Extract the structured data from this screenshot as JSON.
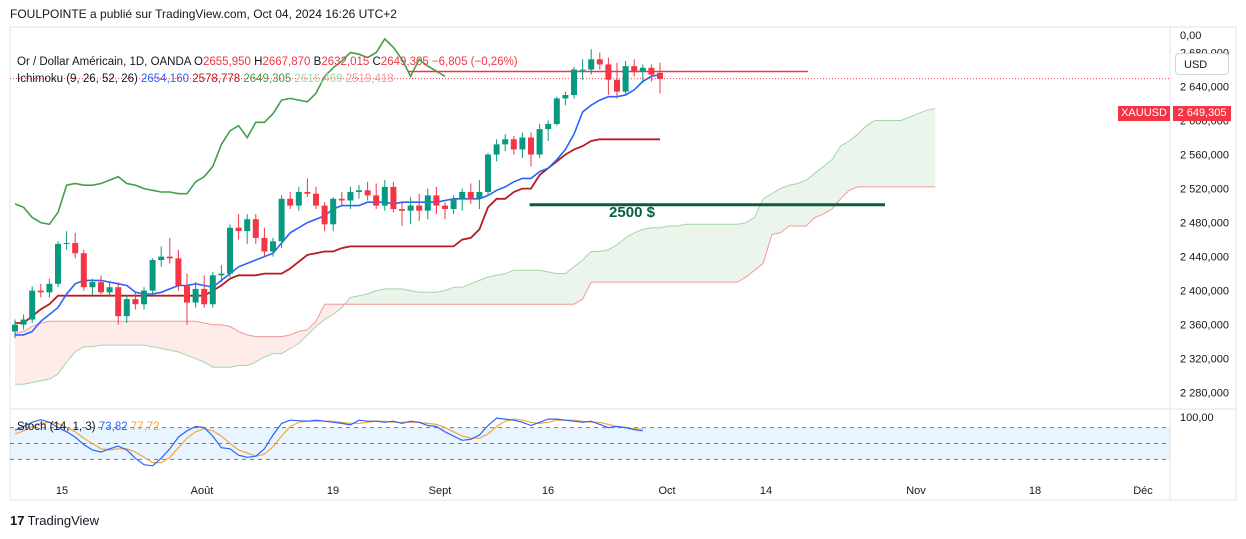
{
  "header": {
    "text": "FOULPOINTE a publié sur TradingView.com, Oct 04, 2024 16:26 UTC+2"
  },
  "legend": {
    "symbol": "Or / Dollar Américain, 1D, OANDA",
    "open_label": "O",
    "open": "2655,950",
    "high_label": "H",
    "high": "2667,870",
    "low_label": "B",
    "low": "2632,015",
    "close_label": "C",
    "close": "2649,305",
    "change": "−6,805 (−0,26%)",
    "ichimoku_label": "Ichimoku (9, 26, 52, 26)",
    "ich_conversion": "2654,160",
    "ich_base": "2578,778",
    "ich_lagging": "2649,305",
    "ich_span_a": "2616,469",
    "ich_span_b": "2519,418"
  },
  "stoch_legend": {
    "label": "Stoch (14, 1, 3)",
    "k": "73,82",
    "d": "77,72"
  },
  "price_axis": {
    "currency": "USD",
    "top_label": "0,00",
    "price_ticks": [
      "2 680,000",
      "2 640,000",
      "2 600,000",
      "2 560,000",
      "2 520,000",
      "2 480,000",
      "2 440,000",
      "2 400,000",
      "2 360,000",
      "2 320,000",
      "2 280,000"
    ],
    "stoch_top_tick": "100,00",
    "symbol_tag": "XAUUSD",
    "price_tag": "2 649,305"
  },
  "time_axis": {
    "labels": [
      "15",
      "Août",
      "19",
      "Sept",
      "16",
      "Oct",
      "14",
      "Nov",
      "18",
      "Déc"
    ]
  },
  "annotation": {
    "text": "2500 $"
  },
  "colors": {
    "up": "#089981",
    "down": "#f23645",
    "conversion": "#2962ff",
    "base": "#b71c1c",
    "lagging": "#43a047",
    "span_a": "#a5d6a7",
    "span_b": "#ef9a9a",
    "stoch_k": "#2962ff",
    "stoch_d": "#f2a93b",
    "level_line": "#0b5e3c",
    "resistance_line": "#f23645"
  },
  "footer": {
    "brand": "TradingView",
    "logo": "tradingview-logo-icon"
  },
  "chart_data": {
    "type": "candlestick",
    "symbol": "XAUUSD",
    "timeframe": "1D",
    "ylim": [
      2262,
      2710
    ],
    "candles": [
      {
        "o": 2352,
        "h": 2366,
        "l": 2344,
        "c": 2360
      },
      {
        "o": 2360,
        "h": 2372,
        "l": 2354,
        "c": 2366
      },
      {
        "o": 2366,
        "h": 2405,
        "l": 2362,
        "c": 2400
      },
      {
        "o": 2400,
        "h": 2408,
        "l": 2392,
        "c": 2398
      },
      {
        "o": 2398,
        "h": 2414,
        "l": 2392,
        "c": 2408
      },
      {
        "o": 2408,
        "h": 2458,
        "l": 2404,
        "c": 2455
      },
      {
        "o": 2455,
        "h": 2470,
        "l": 2448,
        "c": 2456
      },
      {
        "o": 2456,
        "h": 2468,
        "l": 2438,
        "c": 2444
      },
      {
        "o": 2444,
        "h": 2448,
        "l": 2400,
        "c": 2404
      },
      {
        "o": 2404,
        "h": 2414,
        "l": 2395,
        "c": 2410
      },
      {
        "o": 2410,
        "h": 2418,
        "l": 2396,
        "c": 2398
      },
      {
        "o": 2398,
        "h": 2410,
        "l": 2394,
        "c": 2404
      },
      {
        "o": 2404,
        "h": 2410,
        "l": 2360,
        "c": 2370
      },
      {
        "o": 2370,
        "h": 2395,
        "l": 2362,
        "c": 2390
      },
      {
        "o": 2390,
        "h": 2398,
        "l": 2378,
        "c": 2384
      },
      {
        "o": 2384,
        "h": 2404,
        "l": 2378,
        "c": 2400
      },
      {
        "o": 2400,
        "h": 2438,
        "l": 2396,
        "c": 2436
      },
      {
        "o": 2436,
        "h": 2452,
        "l": 2428,
        "c": 2440
      },
      {
        "o": 2440,
        "h": 2462,
        "l": 2432,
        "c": 2438
      },
      {
        "o": 2438,
        "h": 2448,
        "l": 2400,
        "c": 2406
      },
      {
        "o": 2406,
        "h": 2420,
        "l": 2360,
        "c": 2386
      },
      {
        "o": 2386,
        "h": 2410,
        "l": 2380,
        "c": 2402
      },
      {
        "o": 2402,
        "h": 2418,
        "l": 2380,
        "c": 2384
      },
      {
        "o": 2384,
        "h": 2422,
        "l": 2380,
        "c": 2418
      },
      {
        "o": 2418,
        "h": 2430,
        "l": 2410,
        "c": 2420
      },
      {
        "o": 2420,
        "h": 2478,
        "l": 2416,
        "c": 2474
      },
      {
        "o": 2474,
        "h": 2490,
        "l": 2460,
        "c": 2470
      },
      {
        "o": 2470,
        "h": 2490,
        "l": 2455,
        "c": 2484
      },
      {
        "o": 2484,
        "h": 2490,
        "l": 2455,
        "c": 2462
      },
      {
        "o": 2462,
        "h": 2474,
        "l": 2440,
        "c": 2446
      },
      {
        "o": 2446,
        "h": 2462,
        "l": 2440,
        "c": 2458
      },
      {
        "o": 2458,
        "h": 2512,
        "l": 2450,
        "c": 2508
      },
      {
        "o": 2508,
        "h": 2516,
        "l": 2496,
        "c": 2500
      },
      {
        "o": 2500,
        "h": 2522,
        "l": 2494,
        "c": 2516
      },
      {
        "o": 2516,
        "h": 2532,
        "l": 2510,
        "c": 2514
      },
      {
        "o": 2514,
        "h": 2522,
        "l": 2496,
        "c": 2500
      },
      {
        "o": 2500,
        "h": 2504,
        "l": 2470,
        "c": 2478
      },
      {
        "o": 2478,
        "h": 2510,
        "l": 2470,
        "c": 2508
      },
      {
        "o": 2508,
        "h": 2516,
        "l": 2500,
        "c": 2506
      },
      {
        "o": 2506,
        "h": 2522,
        "l": 2496,
        "c": 2516
      },
      {
        "o": 2516,
        "h": 2524,
        "l": 2508,
        "c": 2518
      },
      {
        "o": 2518,
        "h": 2528,
        "l": 2506,
        "c": 2512
      },
      {
        "o": 2512,
        "h": 2526,
        "l": 2496,
        "c": 2500
      },
      {
        "o": 2500,
        "h": 2530,
        "l": 2494,
        "c": 2522
      },
      {
        "o": 2522,
        "h": 2528,
        "l": 2492,
        "c": 2496
      },
      {
        "o": 2496,
        "h": 2504,
        "l": 2476,
        "c": 2494
      },
      {
        "o": 2494,
        "h": 2510,
        "l": 2478,
        "c": 2500
      },
      {
        "o": 2500,
        "h": 2514,
        "l": 2482,
        "c": 2494
      },
      {
        "o": 2494,
        "h": 2520,
        "l": 2484,
        "c": 2512
      },
      {
        "o": 2512,
        "h": 2522,
        "l": 2490,
        "c": 2500
      },
      {
        "o": 2500,
        "h": 2504,
        "l": 2484,
        "c": 2496
      },
      {
        "o": 2496,
        "h": 2512,
        "l": 2490,
        "c": 2508
      },
      {
        "o": 2508,
        "h": 2520,
        "l": 2494,
        "c": 2516
      },
      {
        "o": 2516,
        "h": 2526,
        "l": 2502,
        "c": 2508
      },
      {
        "o": 2508,
        "h": 2530,
        "l": 2496,
        "c": 2516
      },
      {
        "o": 2516,
        "h": 2562,
        "l": 2512,
        "c": 2560
      },
      {
        "o": 2560,
        "h": 2578,
        "l": 2552,
        "c": 2572
      },
      {
        "o": 2572,
        "h": 2584,
        "l": 2564,
        "c": 2578
      },
      {
        "o": 2578,
        "h": 2582,
        "l": 2560,
        "c": 2566
      },
      {
        "o": 2566,
        "h": 2586,
        "l": 2556,
        "c": 2580
      },
      {
        "o": 2580,
        "h": 2586,
        "l": 2546,
        "c": 2560
      },
      {
        "o": 2560,
        "h": 2596,
        "l": 2556,
        "c": 2590
      },
      {
        "o": 2590,
        "h": 2600,
        "l": 2576,
        "c": 2596
      },
      {
        "o": 2596,
        "h": 2628,
        "l": 2594,
        "c": 2626
      },
      {
        "o": 2626,
        "h": 2634,
        "l": 2618,
        "c": 2630
      },
      {
        "o": 2630,
        "h": 2663,
        "l": 2626,
        "c": 2660
      },
      {
        "o": 2660,
        "h": 2672,
        "l": 2648,
        "c": 2660
      },
      {
        "o": 2660,
        "h": 2684,
        "l": 2654,
        "c": 2672
      },
      {
        "o": 2672,
        "h": 2680,
        "l": 2660,
        "c": 2666
      },
      {
        "o": 2666,
        "h": 2674,
        "l": 2630,
        "c": 2648
      },
      {
        "o": 2648,
        "h": 2668,
        "l": 2626,
        "c": 2634
      },
      {
        "o": 2634,
        "h": 2670,
        "l": 2630,
        "c": 2664
      },
      {
        "o": 2664,
        "h": 2672,
        "l": 2652,
        "c": 2658
      },
      {
        "o": 2658,
        "h": 2666,
        "l": 2644,
        "c": 2662
      },
      {
        "o": 2662,
        "h": 2666,
        "l": 2646,
        "c": 2654
      },
      {
        "o": 2656,
        "h": 2668,
        "l": 2632,
        "c": 2649
      }
    ],
    "conversion": [
      2348,
      2348,
      2352,
      2364,
      2372,
      2380,
      2396,
      2408,
      2412,
      2412,
      2412,
      2410,
      2408,
      2406,
      2398,
      2396,
      2396,
      2398,
      2402,
      2406,
      2406,
      2408,
      2406,
      2404,
      2412,
      2420,
      2428,
      2432,
      2436,
      2440,
      2444,
      2456,
      2468,
      2474,
      2480,
      2484,
      2488,
      2496,
      2500,
      2500,
      2500,
      2504,
      2504,
      2504,
      2502,
      2504,
      2504,
      2504,
      2504,
      2504,
      2506,
      2508,
      2508,
      2508,
      2508,
      2512,
      2518,
      2522,
      2528,
      2532,
      2532,
      2540,
      2544,
      2554,
      2566,
      2584,
      2610,
      2618,
      2624,
      2628,
      2628,
      2630,
      2636,
      2646,
      2652,
      2654
    ],
    "base": [
      2362,
      2362,
      2370,
      2378,
      2384,
      2394,
      2394,
      2394,
      2394,
      2394,
      2394,
      2394,
      2394,
      2394,
      2394,
      2394,
      2394,
      2394,
      2394,
      2394,
      2394,
      2394,
      2394,
      2400,
      2406,
      2414,
      2418,
      2418,
      2418,
      2420,
      2420,
      2420,
      2426,
      2434,
      2442,
      2444,
      2446,
      2446,
      2450,
      2452,
      2452,
      2452,
      2452,
      2452,
      2452,
      2452,
      2452,
      2452,
      2452,
      2452,
      2452,
      2452,
      2460,
      2462,
      2472,
      2498,
      2508,
      2508,
      2516,
      2520,
      2520,
      2536,
      2544,
      2552,
      2560,
      2566,
      2570,
      2576,
      2578,
      2578,
      2578,
      2578,
      2578,
      2578,
      2578,
      2578
    ],
    "lagging": [
      2502,
      2498,
      2486,
      2480,
      2478,
      2492,
      2524,
      2526,
      2524,
      2524,
      2526,
      2530,
      2534,
      2526,
      2524,
      2520,
      2518,
      2516,
      2516,
      2514,
      2514,
      2528,
      2534,
      2546,
      2572,
      2588,
      2594,
      2580,
      2598,
      2598,
      2608,
      2624,
      2626,
      2624,
      2622,
      2632,
      2652,
      2662,
      2670,
      2680,
      2678,
      2674,
      2680,
      2696,
      2686,
      2672,
      2652,
      2672,
      2664,
      2658,
      2652
    ],
    "span_a": [
      2290,
      2290,
      2292,
      2294,
      2296,
      2302,
      2316,
      2328,
      2334,
      2334,
      2336,
      2336,
      2336,
      2336,
      2336,
      2336,
      2334,
      2332,
      2330,
      2328,
      2324,
      2320,
      2316,
      2310,
      2310,
      2310,
      2312,
      2312,
      2316,
      2322,
      2326,
      2326,
      2332,
      2338,
      2348,
      2358,
      2366,
      2372,
      2380,
      2392,
      2394,
      2396,
      2400,
      2402,
      2402,
      2402,
      2400,
      2398,
      2398,
      2398,
      2400,
      2404,
      2404,
      2408,
      2412,
      2416,
      2418,
      2420,
      2424,
      2424,
      2424,
      2424,
      2422,
      2420,
      2420,
      2428,
      2436,
      2446,
      2446,
      2448,
      2454,
      2462,
      2468,
      2472,
      2474,
      2474,
      2476,
      2476,
      2478,
      2478,
      2478,
      2478,
      2478,
      2478,
      2478,
      2480,
      2486,
      2508,
      2514,
      2520,
      2524,
      2526,
      2530,
      2538,
      2546,
      2554,
      2570,
      2576,
      2584,
      2594,
      2600,
      2600,
      2600,
      2600,
      2604,
      2608,
      2612,
      2614
    ],
    "span_b": [
      2350,
      2352,
      2358,
      2362,
      2364,
      2364,
      2364,
      2364,
      2364,
      2364,
      2364,
      2364,
      2364,
      2364,
      2364,
      2364,
      2364,
      2364,
      2364,
      2364,
      2364,
      2364,
      2362,
      2360,
      2360,
      2358,
      2352,
      2348,
      2346,
      2346,
      2346,
      2346,
      2348,
      2352,
      2354,
      2364,
      2384,
      2384,
      2384,
      2384,
      2384,
      2384,
      2384,
      2384,
      2384,
      2384,
      2384,
      2384,
      2384,
      2384,
      2384,
      2384,
      2384,
      2384,
      2384,
      2384,
      2384,
      2384,
      2384,
      2384,
      2384,
      2384,
      2384,
      2384,
      2384,
      2384,
      2390,
      2410,
      2410,
      2410,
      2410,
      2410,
      2410,
      2410,
      2410,
      2410,
      2410,
      2410,
      2410,
      2410,
      2410,
      2410,
      2410,
      2410,
      2410,
      2416,
      2424,
      2432,
      2466,
      2468,
      2476,
      2476,
      2476,
      2486,
      2490,
      2496,
      2508,
      2518,
      2522,
      2522,
      2522,
      2522,
      2522,
      2522,
      2522,
      2522,
      2522,
      2522
    ],
    "stoch_ylim": [
      0,
      100
    ],
    "stoch_k": [
      75,
      82,
      90,
      95,
      90,
      80,
      72,
      62,
      48,
      38,
      34,
      40,
      45,
      38,
      22,
      10,
      8,
      22,
      40,
      62,
      74,
      82,
      80,
      64,
      42,
      40,
      28,
      24,
      26,
      40,
      66,
      88,
      94,
      93,
      92,
      94,
      92,
      90,
      88,
      85,
      94,
      92,
      92,
      90,
      92,
      88,
      92,
      90,
      84,
      82,
      72,
      64,
      56,
      58,
      66,
      84,
      98,
      96,
      94,
      90,
      84,
      90,
      96,
      96,
      94,
      92,
      90,
      92,
      86,
      80,
      82,
      80,
      76,
      74
    ],
    "stoch_d": [
      68,
      74,
      82,
      88,
      90,
      88,
      80,
      72,
      60,
      50,
      40,
      38,
      40,
      40,
      34,
      24,
      14,
      14,
      24,
      42,
      60,
      72,
      78,
      74,
      64,
      50,
      38,
      32,
      26,
      30,
      44,
      64,
      82,
      90,
      92,
      92,
      92,
      92,
      90,
      88,
      88,
      90,
      92,
      92,
      90,
      90,
      90,
      90,
      88,
      86,
      80,
      72,
      64,
      60,
      60,
      68,
      82,
      92,
      96,
      94,
      90,
      88,
      90,
      94,
      94,
      94,
      92,
      90,
      90,
      86,
      82,
      80,
      78,
      77
    ],
    "levels": [
      {
        "name": "2500 $",
        "value": 2501
      },
      {
        "name": "resistance",
        "value": 2660
      }
    ],
    "current_price": 2649.305
  }
}
